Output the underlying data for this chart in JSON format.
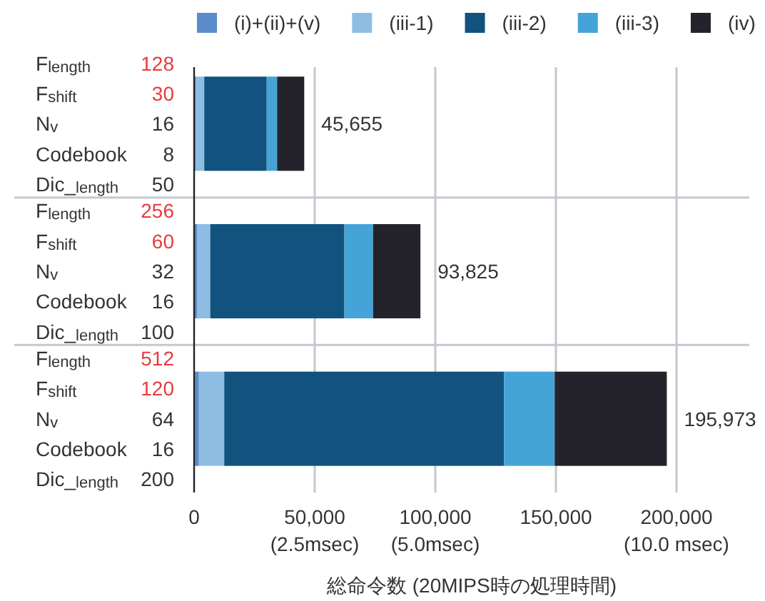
{
  "chart_data": {
    "type": "bar",
    "orientation": "horizontal",
    "stacked": true,
    "legend": "top",
    "grid": true,
    "categories": [
      "F$_{length}$ 128\nF$_{shift}$ 30\nN$_{v}$ 16\nCodebook 8\nDic_$_{length}$ 50",
      "F$_{length}$ 256\nF$_{shift}$ 60\nN$_{v}$ 32\nCodebook 16\nDic_$_{length}$ 100",
      "F$_{length}$ 512\nF$_{shift}$ 120\nN$_{v}$ 64\nCodebook 16\nDic_$_{length}$ 200"
    ],
    "series": [
      {
        "name": "(i)+(ii)+(v)",
        "color": "#5b8bc9",
        "values": [
          800,
          1200,
          2000
        ]
      },
      {
        "name": "(iii-1)",
        "color": "#8dbde3",
        "values": [
          3400,
          5500,
          10500
        ]
      },
      {
        "name": "(iii-2)",
        "color": "#11527f",
        "values": [
          25900,
          55600,
          116000
        ]
      },
      {
        "name": "(iii-3)",
        "color": "#44a4d8",
        "values": [
          4300,
          11900,
          21000
        ]
      },
      {
        "name": "(iv)",
        "color": "#24232b",
        "values": [
          11255,
          19625,
          46473
        ]
      }
    ],
    "totals": [
      "45,655",
      "93,825",
      "195,973"
    ],
    "xlabel": "総命令数 (20MIPS時の処理時間)",
    "xlim": [
      0,
      200000
    ],
    "xticks": [
      0,
      {
        "value": 50000,
        "label": "50,000\n(2.5msec)"
      },
      {
        "value": 100000,
        "label": "100,000\n(5.0msec)"
      },
      {
        "value": 150000,
        "label": "150,000"
      },
      {
        "value": 200000,
        "label": "200,000\n(10.0 msec)"
      }
    ]
  }
}
